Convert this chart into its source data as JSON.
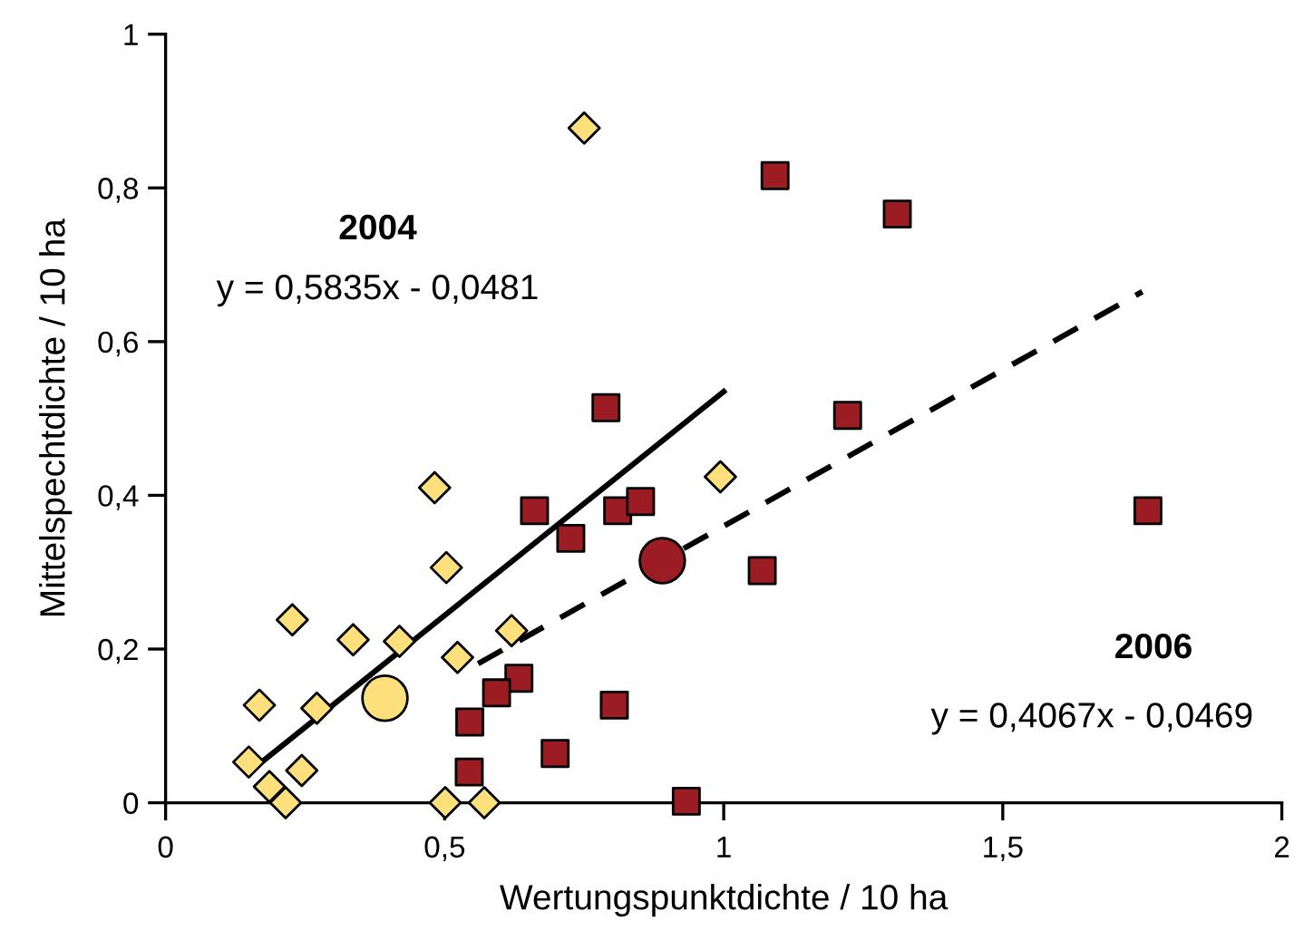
{
  "chart_data": {
    "type": "scatter",
    "xlabel": "Wertungspunktdichte / 10 ha",
    "ylabel": "Mittelspechtdichte / 10 ha",
    "xlim": [
      0,
      2
    ],
    "xticks": [
      0,
      {
        "value": 0.5,
        "label": "0,5"
      },
      1,
      {
        "value": 1.5,
        "label": "1,5"
      },
      2
    ],
    "ylim": [
      0,
      1
    ],
    "yticks": [
      0,
      {
        "value": 0.2,
        "label": "0,2"
      },
      {
        "value": 0.4,
        "label": "0,4"
      },
      {
        "value": 0.6,
        "label": "0,6"
      },
      {
        "value": 0.8,
        "label": "0,8"
      },
      1
    ],
    "grid": false,
    "legend": false,
    "annotations": [
      "2004",
      "y = 0,5835x - 0,0481",
      "2006",
      "y = 0,4067x - 0,0469"
    ],
    "series": [
      {
        "type": "scatter",
        "marker": "diamond",
        "color": "#fde07c",
        "x": [
          0.149,
          0.186,
          0.215,
          0.168,
          0.244,
          0.271,
          0.227,
          0.336,
          0.419,
          0.482,
          0.503,
          0.523,
          0.62,
          0.501,
          0.571,
          0.994,
          0.75
        ],
        "values": [
          0.053,
          0.021,
          0.0,
          0.127,
          0.042,
          0.123,
          0.238,
          0.212,
          0.21,
          0.41,
          0.306,
          0.189,
          0.224,
          0.0,
          0.0,
          0.424,
          0.878
        ]
      },
      {
        "type": "scatter",
        "marker": "square",
        "color": "#9b1c22",
        "x": [
          1.092,
          1.311,
          0.789,
          1.222,
          0.661,
          0.81,
          0.851,
          0.726,
          1.76,
          1.069,
          0.633,
          0.593,
          0.545,
          0.804,
          0.698,
          0.544,
          0.933
        ],
        "values": [
          0.816,
          0.766,
          0.514,
          0.504,
          0.38,
          0.38,
          0.392,
          0.344,
          0.38,
          0.302,
          0.162,
          0.143,
          0.105,
          0.127,
          0.064,
          0.04,
          0.002
        ]
      },
      {
        "type": "line",
        "line_style": "solid",
        "color": "#000000",
        "x": [
          0.15,
          1.0
        ],
        "values": [
          0.04,
          0.535
        ]
      },
      {
        "type": "line",
        "line_style": "dashed",
        "color": "#000000",
        "x": [
          0.56,
          1.75
        ],
        "values": [
          0.181,
          0.665
        ]
      },
      {
        "type": "scatter",
        "marker": "circle",
        "color": "#fde07c",
        "x": [
          0.393
        ],
        "values": [
          0.136
        ]
      },
      {
        "type": "scatter",
        "marker": "circle",
        "color": "#9b1c22",
        "x": [
          0.89
        ],
        "values": [
          0.315
        ]
      }
    ]
  }
}
